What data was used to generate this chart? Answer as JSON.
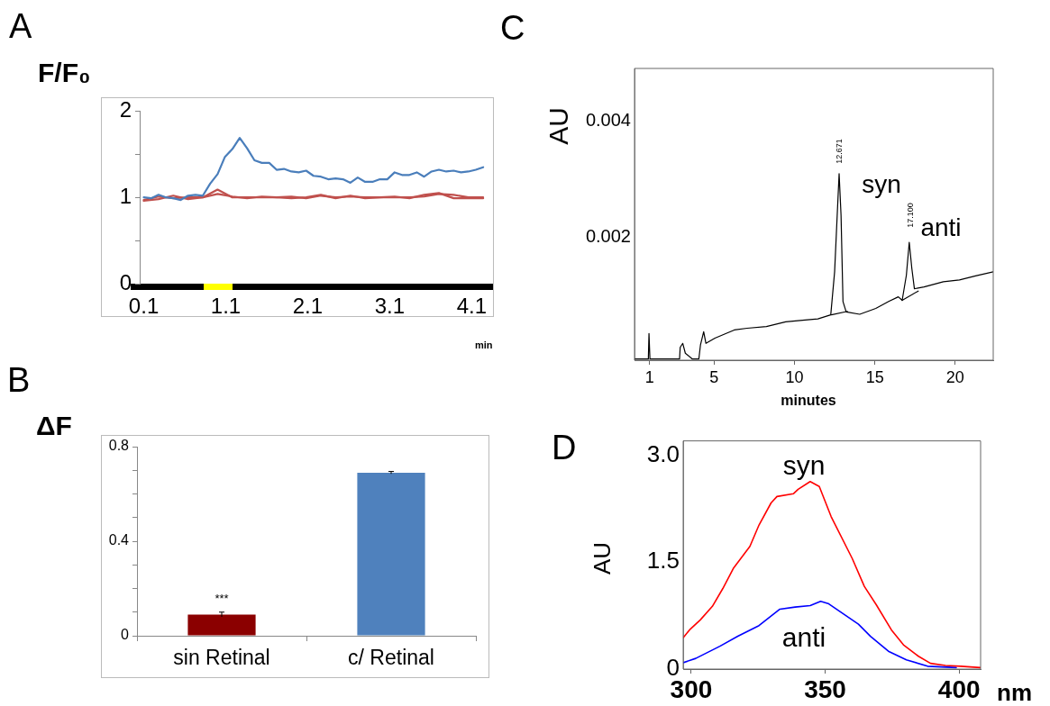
{
  "chart_data": [
    {
      "type": "line",
      "title": "A",
      "ylabel": "F/F₀",
      "xlabel": "min",
      "marker": "none",
      "xlim": [
        0.05,
        4.36
      ],
      "xticks": [
        0.1,
        1.1,
        2.1,
        3.1,
        4.1
      ],
      "ylim": [
        0,
        2
      ],
      "yticks": [
        0,
        {
          "value": 0.5,
          "label": null
        },
        1,
        {
          "value": 1.5,
          "label": null
        },
        2
      ],
      "series": [
        {
          "color": "#4a7ebb",
          "x": [
            0.1,
            0.19,
            0.28,
            0.37,
            0.46,
            0.55,
            0.64,
            0.73,
            0.82,
            0.91,
            1.0,
            1.09,
            1.18,
            1.27,
            1.36,
            1.45,
            1.54,
            1.63,
            1.72,
            1.81,
            1.9,
            1.99,
            2.08,
            2.17,
            2.26,
            2.35,
            2.44,
            2.53,
            2.62,
            2.71,
            2.8,
            2.89,
            2.98,
            3.07,
            3.16,
            3.25,
            3.34,
            3.43,
            3.52,
            3.61,
            3.7,
            3.79,
            3.88,
            3.97,
            4.06,
            4.15,
            4.24
          ],
          "values": [
            1.0,
            0.99,
            1.03,
            1.0,
            0.99,
            0.97,
            1.02,
            1.03,
            1.02,
            1.16,
            1.27,
            1.47,
            1.56,
            1.69,
            1.57,
            1.43,
            1.4,
            1.4,
            1.32,
            1.33,
            1.3,
            1.29,
            1.31,
            1.25,
            1.24,
            1.21,
            1.22,
            1.21,
            1.17,
            1.23,
            1.18,
            1.18,
            1.21,
            1.21,
            1.29,
            1.26,
            1.26,
            1.29,
            1.24,
            1.3,
            1.32,
            1.3,
            1.31,
            1.29,
            1.3,
            1.32,
            1.35
          ]
        },
        {
          "color": "#c0504d",
          "x": [
            0.1,
            0.28,
            0.46,
            0.64,
            0.82,
            1.0,
            1.18,
            1.36,
            1.54,
            1.72,
            1.9,
            2.08,
            2.26,
            2.44,
            2.62,
            2.8,
            2.98,
            3.16,
            3.34,
            3.52,
            3.7,
            3.88,
            4.06,
            4.24
          ],
          "values": [
            0.97,
            1.01,
            0.99,
            1.0,
            1.0,
            1.09,
            1.0,
            1.0,
            1.0,
            1.0,
            1.01,
            0.99,
            1.02,
            1.0,
            1.01,
            1.0,
            1.0,
            1.0,
            1.0,
            1.01,
            1.04,
            1.03,
            1.0,
            1.0
          ]
        },
        {
          "color": "#c0504d",
          "x": [
            0.1,
            0.28,
            0.46,
            0.64,
            0.82,
            1.0,
            1.18,
            1.36,
            1.54,
            1.72,
            1.9,
            2.08,
            2.26,
            2.44,
            2.62,
            2.8,
            2.98,
            3.16,
            3.34,
            3.52,
            3.7,
            3.88,
            4.06,
            4.24
          ],
          "values": [
            0.96,
            0.98,
            1.02,
            0.98,
            1.0,
            1.04,
            1.01,
            0.99,
            1.01,
            1.0,
            0.99,
            1.0,
            1.03,
            0.99,
            1.02,
            0.99,
            1.0,
            1.01,
            0.99,
            1.03,
            1.05,
            0.99,
            0.99,
            0.99
          ]
        }
      ]
    },
    {
      "type": "bar",
      "title": "B",
      "ylabel": "ΔF",
      "categories": [
        "sin Retinal",
        "c/ Retinal"
      ],
      "values": [
        0.09,
        0.69
      ],
      "errors": [
        0.01,
        0.005
      ],
      "colors": [
        "#8b0000",
        "#4f81bd"
      ],
      "ylim": [
        0,
        0.8
      ],
      "yticks": [
        0,
        {
          "value": 0.1,
          "label": null
        },
        {
          "value": 0.2,
          "label": null
        },
        {
          "value": 0.3,
          "label": null
        },
        0.4,
        {
          "value": 0.5,
          "label": null
        },
        {
          "value": 0.6,
          "label": null
        },
        {
          "value": 0.7,
          "label": null
        },
        0.8
      ],
      "annotations": [
        "***"
      ]
    },
    {
      "type": "line",
      "title": "C",
      "ylabel": "AU",
      "xlabel": "minutes",
      "marker": "none",
      "xlim": [
        0.06,
        22.36
      ],
      "xticks": [
        1,
        5,
        10,
        15,
        20
      ],
      "ylim": [
        -0.00012,
        0.0049
      ],
      "yticks": [
        {
          "value": 0.002,
          "label": "0.002"
        },
        0.004
      ],
      "series": [
        {
          "color": "#000000",
          "x": [
            0.06,
            0.92,
            0.96,
            1.02,
            2.86,
            2.9,
            3.06,
            3.22,
            3.66,
            4.06,
            4.16,
            4.36,
            4.5,
            5.06,
            6.26,
            7.06,
            8.26,
            9.46,
            10.66,
            11.46,
            12.26,
            12.5,
            12.66,
            12.78,
            12.9,
            13.02,
            13.22,
            14.06,
            15.06,
            15.86,
            16.46,
            16.7,
            16.96,
            17.14,
            17.3,
            17.46,
            18.06,
            19.26,
            20.26,
            21.26,
            22.36
          ],
          "values": [
            -0.0001,
            -0.0001,
            0.00034,
            -0.0001,
            -0.0001,
            0.0001,
            0.00017,
            0,
            -0.0001,
            -0.0001,
            0.00014,
            0.00037,
            0.00017,
            0.00026,
            0.0004,
            0.00043,
            0.00046,
            0.00054,
            0.00057,
            0.00059,
            0.00066,
            0.0014,
            0.00237,
            0.00309,
            0.00237,
            0.00089,
            0.00071,
            0.00067,
            0.00077,
            0.00089,
            0.00097,
            0.00091,
            0.00134,
            0.00191,
            0.00146,
            0.00111,
            0.00114,
            0.00123,
            0.00126,
            0.00133,
            0.0014
          ]
        },
        {
          "color": "#000000",
          "x": [
            12.3,
            13.3
          ],
          "values": [
            0.00066,
            0.00072
          ]
        },
        {
          "color": "#000000",
          "x": [
            16.7,
            17.7
          ],
          "values": [
            0.00091,
            0.00107
          ]
        }
      ],
      "annotations": [
        "12.671",
        "17.100",
        "syn",
        "anti"
      ]
    },
    {
      "type": "line",
      "title": "D",
      "ylabel": "AU",
      "xlabel": "nm",
      "marker": "none",
      "xlim": [
        297,
        408
      ],
      "xticks": [
        300,
        350,
        400
      ],
      "ylim": [
        0,
        3.2
      ],
      "yticks": [
        0,
        1.5,
        {
          "value": 3,
          "label": "3.0"
        }
      ],
      "series": [
        {
          "color": "#ff0000",
          "x": [
            297,
            299.4,
            303.4,
            307.9,
            311.8,
            315.7,
            321.9,
            325.3,
            329.8,
            332,
            338.2,
            339.9,
            344.4,
            347.8,
            352.2,
            360.1,
            364.6,
            369.1,
            374.7,
            379.2,
            384.8,
            389.3,
            394.9,
            400.6,
            407.9
          ],
          "values": [
            0.44,
            0.55,
            0.69,
            0.88,
            1.13,
            1.41,
            1.72,
            2.02,
            2.33,
            2.42,
            2.46,
            2.52,
            2.63,
            2.56,
            2.14,
            1.55,
            1.16,
            0.9,
            0.55,
            0.34,
            0.18,
            0.08,
            0.05,
            0.04,
            0.02
          ]
        },
        {
          "color": "#0000ff",
          "x": [
            297,
            301.7,
            310.7,
            317.4,
            325.3,
            333.1,
            338.8,
            344.4,
            348.3,
            351.1,
            362.4,
            366.9,
            373.6,
            380.3,
            388.2,
            398.9
          ],
          "values": [
            0.09,
            0.15,
            0.32,
            0.46,
            0.61,
            0.84,
            0.87,
            0.89,
            0.95,
            0.92,
            0.63,
            0.46,
            0.25,
            0.13,
            0.04,
            0.02
          ]
        }
      ],
      "annotations": [
        "syn",
        "anti"
      ]
    }
  ]
}
